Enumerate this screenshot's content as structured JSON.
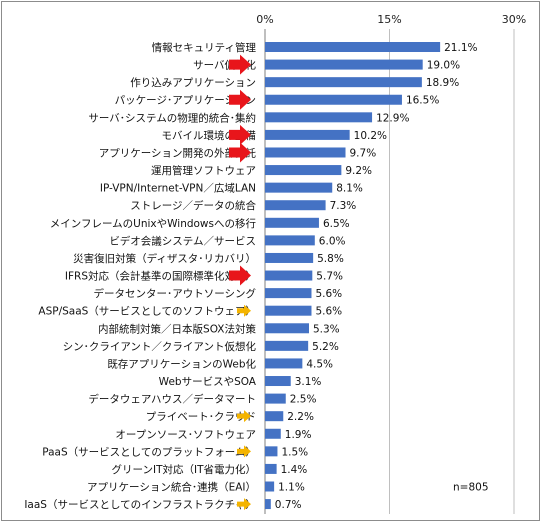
{
  "chart_data": {
    "type": "bar",
    "orientation": "horizontal",
    "title": "",
    "xlabel": "",
    "ylabel": "",
    "xlim": [
      0,
      30
    ],
    "ticks": [
      "0%",
      "15%",
      "30%"
    ],
    "tick_values": [
      0,
      15,
      30
    ],
    "grid": true,
    "bar_color": "#4472c4",
    "note": "n=805",
    "categories": [
      "情報セキュリティ管理",
      "サーバ仮想化",
      "作り込みアプリケーション",
      "パッケージ･アプリケーション",
      "サーバ･システムの物理的統合･集約",
      "モバイル環境の整備",
      "アプリケーション開発の外部委託",
      "運用管理ソフトウェア",
      "IP-VPN/Internet-VPN／広域LAN",
      "ストレージ／データの統合",
      "メインフレームのUnixやWindowsへの移行",
      "ビデオ会議システム／サービス",
      "災害復旧対策（ディザスタ･リカバリ）",
      "IFRS対応（会計基準の国際標準化対応）",
      "データセンター･アウトソーシング",
      "ASP/SaaS（サービスとしてのソフトウェア）",
      "内部統制対策／日本版SOX法対策",
      "シン･クライアント／クライアント仮想化",
      "既存アプリケーションのWeb化",
      "WebサービスやSOA",
      "データウェアハウス／データマート",
      "プライベート･クラウド",
      "オープンソース･ソフトウェア",
      "PaaS（サービスとしてのプラットフォーム）",
      "グリーンIT対応（IT省電力化）",
      "アプリケーション統合･連携（EAI）",
      "IaaS（サービスとしてのインフラストラクチャ）"
    ],
    "values": [
      21.1,
      19.0,
      18.9,
      16.5,
      12.9,
      10.2,
      9.7,
      9.2,
      8.1,
      7.3,
      6.5,
      6.0,
      5.8,
      5.7,
      5.6,
      5.6,
      5.3,
      5.2,
      4.5,
      3.1,
      2.5,
      2.2,
      1.9,
      1.5,
      1.4,
      1.1,
      0.7
    ],
    "value_labels": [
      "21.1%",
      "19.0%",
      "18.9%",
      "16.5%",
      "12.9%",
      "10.2%",
      "9.7%",
      "9.2%",
      "8.1%",
      "7.3%",
      "6.5%",
      "6.0%",
      "5.8%",
      "5.7%",
      "5.6%",
      "5.6%",
      "5.3%",
      "5.2%",
      "4.5%",
      "3.1%",
      "2.5%",
      "2.2%",
      "1.9%",
      "1.5%",
      "1.4%",
      "1.1%",
      "0.7%"
    ],
    "markers": [
      "",
      "red-arrow",
      "",
      "red-arrow",
      "",
      "red-arrow",
      "red-arrow",
      "",
      "",
      "",
      "",
      "",
      "",
      "red-arrow",
      "",
      "yellow-arrow",
      "",
      "",
      "",
      "",
      "",
      "yellow-arrow",
      "",
      "yellow-arrow",
      "",
      "",
      "yellow-arrow"
    ],
    "marker_colors": {
      "red-arrow": "#e8151b",
      "yellow-arrow": "#f4b400"
    }
  }
}
